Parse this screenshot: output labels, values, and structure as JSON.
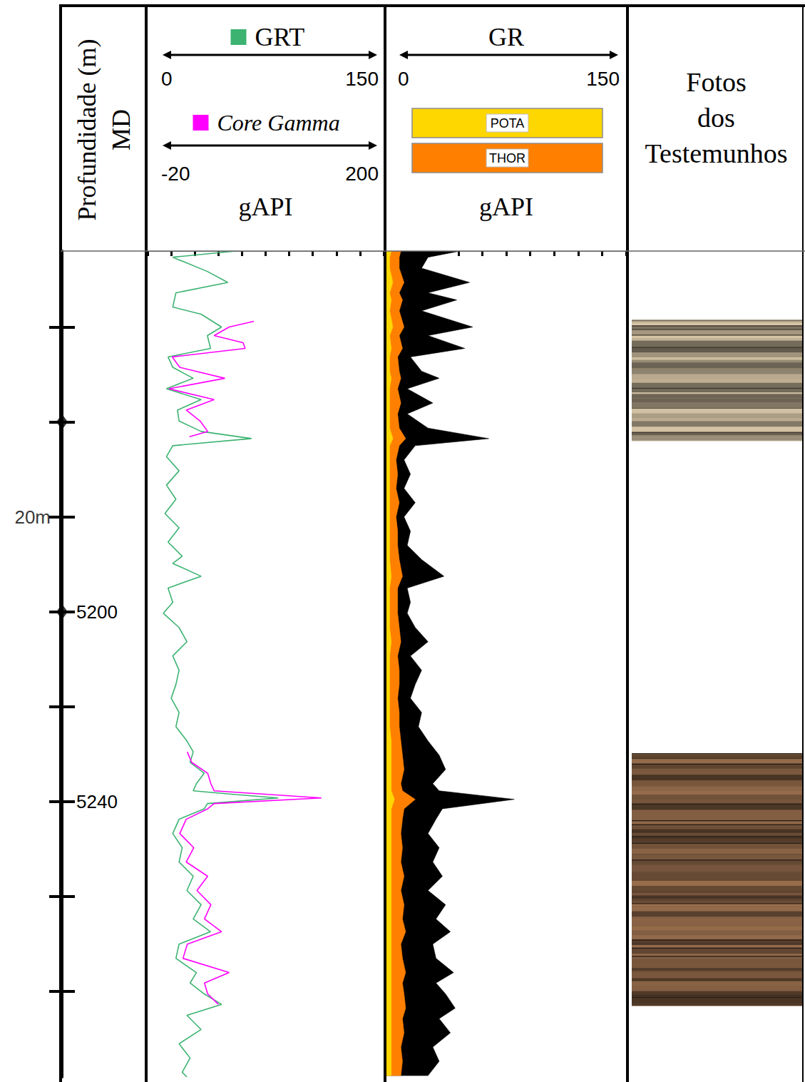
{
  "chart_data": {
    "type": "well_log",
    "tick_labels": "y",
    "depth_axis": {
      "title": "Profundidade (m) MD",
      "ylim": [
        5124,
        5298
      ],
      "yticks": [
        {
          "value": 5140,
          "label": null
        },
        {
          "value": 5160,
          "label": null
        },
        {
          "value": 5180,
          "label": null
        },
        5200,
        {
          "value": 5220,
          "label": null
        },
        5240,
        {
          "value": 5260,
          "label": null
        },
        {
          "value": 5280,
          "label": null
        }
      ],
      "scale_bar": {
        "label": "20m",
        "ends": [
          5160,
          5200
        ]
      }
    },
    "tracks": [
      {
        "type": "line",
        "unit": "gAPI",
        "xticks": [
          0,
          15,
          30,
          45,
          60,
          75,
          90,
          105,
          120,
          135,
          150
        ],
        "series": [
          {
            "name": "GRT",
            "color": "#3cb371",
            "xlim": [
              0,
              150
            ],
            "depth": [
              5124,
              5125.3,
              5128.3,
              5130.6,
              5132.8,
              5135.8,
              5137.3,
              5140,
              5141.8,
              5144.5,
              5146.3,
              5148.5,
              5150.8,
              5153,
              5155.3,
              5157.5,
              5159.8,
              5162,
              5163.5,
              5165,
              5167.3,
              5170.3,
              5173.3,
              5176.3,
              5179.3,
              5182.3,
              5185.3,
              5188.3,
              5189.8,
              5192.5,
              5195,
              5198,
              5200.3,
              5203.3,
              5206.3,
              5209.3,
              5212.3,
              5215.3,
              5218.2,
              5221.2,
              5224.2,
              5227.2,
              5229.5,
              5231.7,
              5234,
              5236.2,
              5237.7,
              5238.5,
              5239.2,
              5240.4,
              5241.5,
              5243.7,
              5246.7,
              5249.7,
              5252.7,
              5255.7,
              5258.7,
              5261.7,
              5264.7,
              5267.4,
              5270,
              5273,
              5276,
              5278.2,
              5280.5,
              5282.7,
              5285,
              5288,
              5291,
              5294,
              5297,
              5298
            ],
            "values": [
              56,
              16,
              38,
              51,
              18,
              16,
              34,
              47,
              38,
              40,
              13,
              16,
              29,
              12,
              34,
              19,
              20,
              34,
              66,
              16,
              12,
              20,
              12,
              18,
              11,
              20,
              13,
              22,
              16,
              34,
              13,
              16,
              10,
              20,
              25,
              16,
              20,
              18,
              15,
              20,
              18,
              25,
              29,
              27,
              36,
              31,
              29,
              56,
              83,
              38,
              36,
              20,
              16,
              22,
              20,
              29,
              25,
              34,
              29,
              40,
              20,
              18,
              31,
              27,
              36,
              47,
              25,
              34,
              20,
              27,
              22,
              25
            ]
          },
          {
            "name": "Core Gamma",
            "color": "#ff00ff",
            "xlim": [
              -20,
              200
            ],
            "depth": [
              5138.8,
              5140,
              5141.8,
              5143.3,
              5144.5,
              5146.3,
              5148.5,
              5150.8,
              5153,
              5155.3,
              5157.5,
              5159.8,
              5162,
              5163.1,
              null,
              5229.5,
              5231.7,
              5234,
              5236.2,
              5237.7,
              5239.2,
              5240.4,
              5241.5,
              5243.7,
              5246.7,
              5249.7,
              5252.7,
              5255.7,
              5258.7,
              5261.7,
              5264.7,
              5267.4,
              5270,
              5273,
              5276,
              5278.2,
              5280.5,
              5282.7
            ],
            "values": [
              79,
              56,
              42,
              69,
              71,
              3,
              10,
              52,
              0,
              42,
              16,
              29,
              36,
              19,
              null,
              17,
              21,
              36,
              39,
              42,
              142,
              42,
              36,
              16,
              10,
              23,
              16,
              36,
              26,
              39,
              33,
              49,
              17,
              13,
              56,
              33,
              36,
              46
            ]
          }
        ]
      },
      {
        "type": "area",
        "unit": "gAPI",
        "xlim": [
          0,
          150
        ],
        "xticks": [
          0,
          15,
          30,
          45,
          60,
          75,
          90,
          105,
          120,
          135,
          150
        ],
        "depth": [
          5124,
          5125.3,
          5127.6,
          5130.6,
          5132.8,
          5134.3,
          5136.6,
          5140,
          5141.8,
          5144.5,
          5146.3,
          5149.3,
          5150.8,
          5153,
          5156,
          5158.3,
          5161.3,
          5163.5,
          5165,
          5168,
          5171,
          5174,
          5177,
          5180,
          5183,
          5186,
          5189,
          5192.5,
          5195,
          5198,
          5200.3,
          5203.3,
          5206.3,
          5209.3,
          5212.3,
          5215.3,
          5218.2,
          5221.2,
          5224.2,
          5227.2,
          5230.2,
          5233.2,
          5236.2,
          5237.7,
          5239.5,
          5241.5,
          5243.7,
          5246.7,
          5249.7,
          5252.7,
          5255.7,
          5258.7,
          5261.7,
          5264.7,
          5267.4,
          5270,
          5273,
          5276,
          5278.2,
          5280.5,
          5283.5,
          5285.7,
          5288.7,
          5291.7,
          5294.7,
          5297.7
        ],
        "series": [
          {
            "name": "GR",
            "color": "#000000",
            "values": [
              46,
              26,
              22,
              52,
              26,
              44,
              22,
              54,
              26,
              49,
              15,
              22,
              33,
              13,
              29,
              13,
              26,
              64,
              18,
              11,
              15,
              11,
              18,
              11,
              15,
              13,
              22,
              36,
              13,
              15,
              13,
              18,
              26,
              15,
              22,
              18,
              15,
              22,
              20,
              26,
              33,
              37,
              29,
              33,
              80,
              35,
              31,
              26,
              33,
              29,
              35,
              26,
              37,
              31,
              40,
              29,
              31,
              42,
              31,
              37,
              43,
              33,
              40,
              29,
              33,
              26
            ]
          },
          {
            "name": "POTA",
            "color": "#ffd700",
            "values": [
              3,
              2,
              2,
              4,
              2,
              3,
              2,
              4,
              2,
              3,
              2,
              2,
              3,
              2,
              2,
              2,
              2,
              4,
              2,
              2,
              2,
              2,
              2,
              2,
              2,
              2,
              2,
              3,
              2,
              2,
              2,
              2,
              3,
              2,
              2,
              2,
              2,
              2,
              2,
              3,
              3,
              3,
              3,
              3,
              5,
              3,
              3,
              3,
              3,
              3,
              3,
              3,
              3,
              3,
              3,
              3,
              3,
              3,
              3,
              3,
              3,
              3,
              3,
              3,
              3,
              3
            ]
          },
          {
            "name": "THOR",
            "color": "#ff8000",
            "values": [
              9,
              8,
              8,
              11,
              8,
              10,
              8,
              11,
              8,
              10,
              7,
              8,
              9,
              7,
              9,
              7,
              8,
              12,
              8,
              6,
              7,
              6,
              8,
              6,
              7,
              7,
              8,
              10,
              7,
              7,
              7,
              8,
              9,
              7,
              8,
              8,
              7,
              8,
              8,
              9,
              10,
              11,
              9,
              10,
              18,
              11,
              10,
              9,
              10,
              9,
              11,
              9,
              11,
              10,
              12,
              9,
              10,
              12,
              10,
              11,
              12,
              10,
              11,
              9,
              10,
              9
            ]
          }
        ]
      },
      {
        "type": "image",
        "title": "Fotos dos Testemunhos",
        "cores": [
          {
            "from": 5138.5,
            "to": 5164,
            "color": "#a0937c"
          },
          {
            "from": 5229.8,
            "to": 5283,
            "color": "#6f5038"
          }
        ]
      }
    ]
  }
}
